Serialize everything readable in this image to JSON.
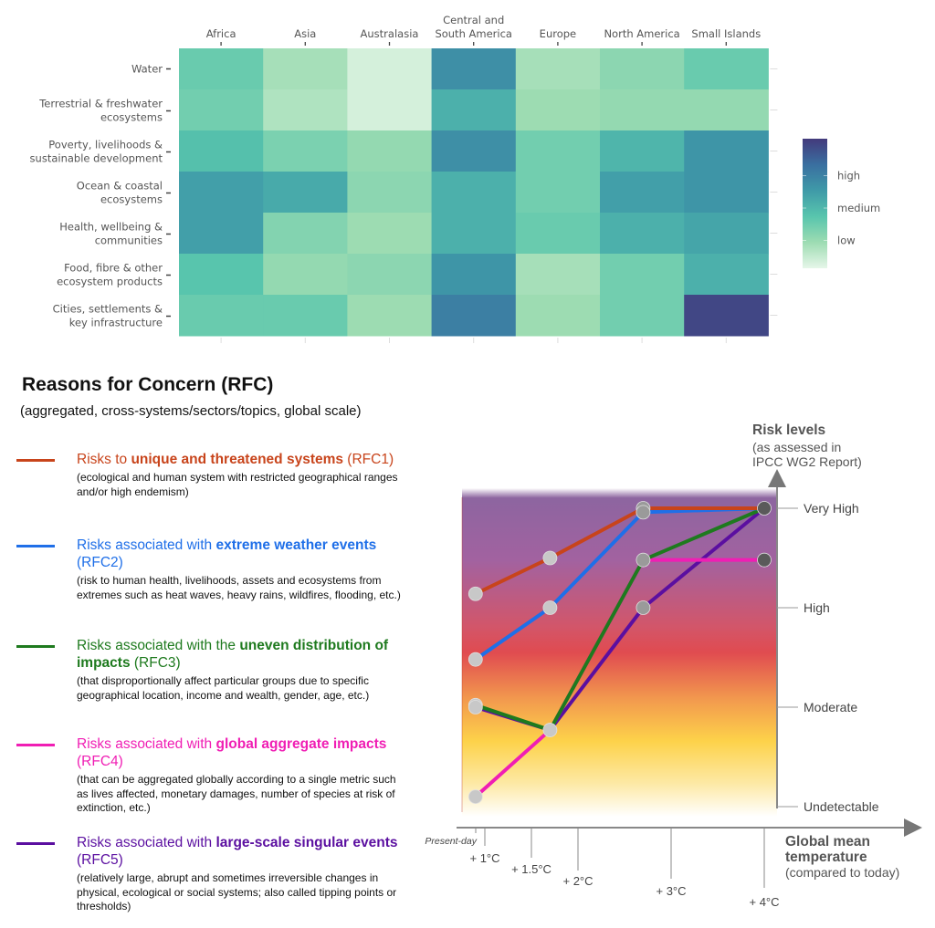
{
  "chart_data": [
    {
      "type": "heatmap",
      "title": "",
      "x_categories": [
        "Africa",
        "Asia",
        "Australasia",
        "Central and South America",
        "Europe",
        "North America",
        "Small Islands"
      ],
      "x_category_lines": [
        [
          "Africa"
        ],
        [
          "Asia"
        ],
        [
          "Australasia"
        ],
        [
          "Central and",
          "South America"
        ],
        [
          "Europe"
        ],
        [
          "North America"
        ],
        [
          "Small Islands"
        ]
      ],
      "y_categories": [
        "Water",
        "Terrestrial & freshwater ecosystems",
        "Poverty, livelihoods & sustainable development",
        "Ocean & coastal ecosystems",
        "Health, wellbeing & communities",
        "Food, fibre & other ecosystem products",
        "Cities, settlements & key infrastructure"
      ],
      "y_category_lines": [
        [
          "Water"
        ],
        [
          "Terrestrial & freshwater",
          "ecosystems"
        ],
        [
          "Poverty, livelihoods &",
          "sustainable development"
        ],
        [
          "Ocean & coastal",
          "ecosystems"
        ],
        [
          "Health, wellbeing &",
          "communities"
        ],
        [
          "Food, fibre & other",
          "ecosystem products"
        ],
        [
          "Cities, settlements &",
          "key infrastructure"
        ]
      ],
      "values": [
        [
          1.4,
          0.7,
          0.2,
          2.6,
          0.7,
          1.0,
          1.4
        ],
        [
          1.3,
          0.6,
          0.2,
          2.0,
          0.8,
          0.9,
          0.9
        ],
        [
          1.7,
          1.2,
          0.9,
          2.6,
          1.3,
          1.9,
          2.5
        ],
        [
          2.3,
          2.1,
          1.0,
          2.0,
          1.3,
          2.3,
          2.5
        ],
        [
          2.3,
          1.1,
          0.8,
          2.0,
          1.4,
          2.0,
          2.2
        ],
        [
          1.6,
          0.9,
          1.0,
          2.5,
          0.7,
          1.3,
          2.0
        ],
        [
          1.4,
          1.4,
          0.8,
          2.9,
          0.8,
          1.3,
          3.8
        ]
      ],
      "value_range": [
        0,
        4
      ],
      "colorbar": {
        "labels": [
          "high",
          "medium",
          "low"
        ],
        "label_values": [
          3,
          2,
          1
        ],
        "colors": [
          "#e6f6e9",
          "#9ddcb2",
          "#58c5ad",
          "#3f9aa8",
          "#3a6fa0",
          "#433a7c"
        ]
      }
    },
    {
      "type": "line",
      "title": "Reasons for Concern (RFC)",
      "subtitle": "(aggregated, cross-systems/sectors/topics, global scale)",
      "xlabel": "Global mean temperature",
      "xlabel_note": "(compared to today)",
      "ylabel": "Risk levels",
      "ylabel_note": [
        "(as assessed in",
        "IPCC WG2 Report)"
      ],
      "x_range": [
        0.5,
        4.3
      ],
      "y_range": [
        0,
        3.35
      ],
      "x_ticks": [
        {
          "value": 0.9,
          "label": "Present-day"
        },
        {
          "value": 1.0,
          "label": "+ 1°C"
        },
        {
          "value": 1.5,
          "label": "+ 1.5°C"
        },
        {
          "value": 2.0,
          "label": "+ 2°C"
        },
        {
          "value": 3.0,
          "label": "+ 3°C"
        },
        {
          "value": 4.0,
          "label": "+ 4°C"
        }
      ],
      "y_ticks": [
        {
          "value": 0,
          "label": "Undetectable"
        },
        {
          "value": 1,
          "label": "Moderate"
        },
        {
          "value": 2,
          "label": "High"
        },
        {
          "value": 3,
          "label": "Very High"
        }
      ],
      "x": [
        0.9,
        1.7,
        2.7,
        4.0
      ],
      "series": [
        {
          "id": "RFC1",
          "name": "Risks to unique and threatened systems (RFC1)",
          "color": "#c8441b",
          "values": [
            2.14,
            2.5,
            3.0,
            3.0
          ]
        },
        {
          "id": "RFC2",
          "name": "Risks associated with extreme weather events (RFC2)",
          "color": "#1f6fe8",
          "values": [
            1.48,
            2.0,
            2.96,
            3.0
          ]
        },
        {
          "id": "RFC3",
          "name": "Risks associated with the uneven distribution of impacts (RFC3)",
          "color": "#1e7a1e",
          "values": [
            1.02,
            0.77,
            2.48,
            3.0
          ]
        },
        {
          "id": "RFC4",
          "name": "Risks associated with global aggregate impacts (RFC4)",
          "color": "#f01eb4",
          "values": [
            0.1,
            0.77,
            2.48,
            2.48
          ]
        },
        {
          "id": "RFC5",
          "name": "Risks associated with large-scale singular events (RFC5)",
          "color": "#5b0fa0",
          "values": [
            1.0,
            0.77,
            2.0,
            3.0
          ]
        }
      ]
    }
  ],
  "legend": [
    {
      "pre": "Risks to ",
      "bold": "unique and threatened systems",
      "post": " (RFC1)",
      "desc": "(ecological and human system with restricted geographical ranges and/or high endemism)",
      "color": "#c8441b"
    },
    {
      "pre": "Risks associated with ",
      "bold": "extreme weather events",
      "post": " (RFC2)",
      "desc": "(risk to human health, livelihoods, assets and ecosystems from extremes such as heat waves, heavy rains, wildfires, flooding, etc.)",
      "color": "#1f6fe8"
    },
    {
      "pre": "Risks associated with the ",
      "bold": "uneven distribution of impacts",
      "post": " (RFC3)",
      "desc": "(that disproportionally affect particular groups due to specific geographical location, income and wealth, gender, age, etc.)",
      "color": "#1e7a1e"
    },
    {
      "pre": "Risks associated with ",
      "bold": "global aggregate impacts",
      "post": " (RFC4)",
      "desc": "(that can be aggregated globally according to a single metric such as lives affected, monetary damages, number of species at risk of extinction, etc.)",
      "color": "#f01eb4"
    },
    {
      "pre": "Risks associated with ",
      "bold": "large-scale singular events",
      "post": " (RFC5)",
      "desc": "(relatively large, abrupt and sometimes irreversible changes in physical, ecological or social systems; also called tipping points or thresholds)",
      "color": "#5b0fa0"
    }
  ]
}
